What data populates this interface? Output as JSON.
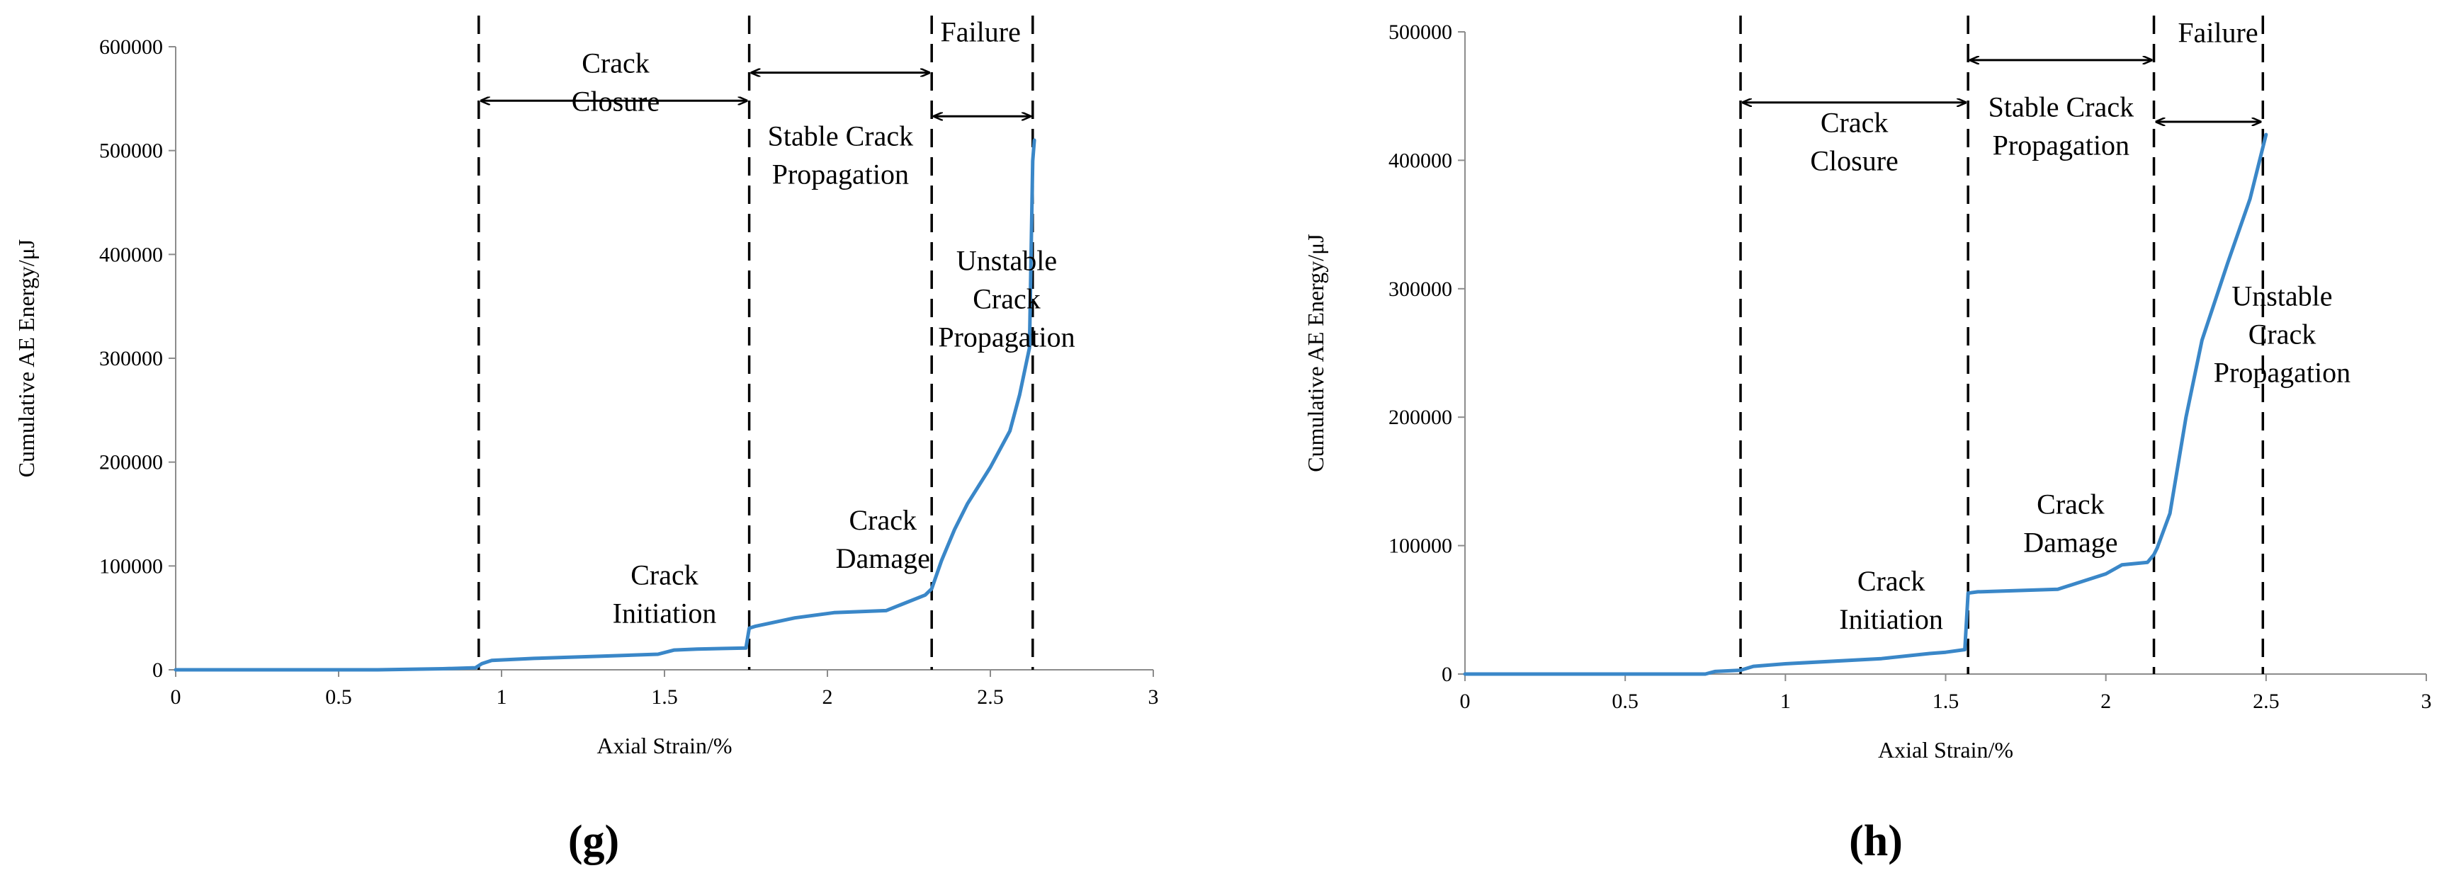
{
  "chart_data": [
    {
      "type": "line",
      "panel_label_parts": [
        "(",
        "g",
        ")"
      ],
      "xlabel": "Axial Strain/%",
      "ylabel": "Cumulative AE Energy/μJ",
      "xlim": [
        0,
        3
      ],
      "ylim": [
        0,
        600000
      ],
      "x_ticks": [
        0,
        0.5,
        1,
        1.5,
        2,
        2.5,
        3
      ],
      "x_tick_labels": [
        "0",
        "0.5",
        "1",
        "1.5",
        "2",
        "2.5",
        "3"
      ],
      "y_ticks": [
        0,
        100000,
        200000,
        300000,
        400000,
        500000,
        600000
      ],
      "y_tick_labels": [
        "0",
        "100000",
        "200000",
        "300000",
        "400000",
        "500000",
        "600000"
      ],
      "grid": false,
      "legend": "none",
      "line_color": "#3a87c8",
      "series": [
        {
          "x": [
            0,
            0.3,
            0.62,
            0.82,
            0.92,
            0.94,
            0.97,
            1.1,
            1.3,
            1.48,
            1.53,
            1.6,
            1.75,
            1.76,
            1.78,
            1.9,
            2.02,
            2.18,
            2.3,
            2.32,
            2.35,
            2.39,
            2.43,
            2.5,
            2.56,
            2.59,
            2.62,
            2.63,
            2.635
          ],
          "y": [
            0,
            0,
            0,
            1000,
            2000,
            6000,
            9000,
            11000,
            13000,
            15000,
            19000,
            20000,
            21000,
            40000,
            42000,
            50000,
            55000,
            57000,
            72000,
            78000,
            105000,
            135000,
            160000,
            195000,
            230000,
            265000,
            310000,
            490000,
            510000
          ]
        }
      ],
      "vlines": [
        0.93,
        1.76,
        2.32,
        2.63
      ],
      "annotations": [
        {
          "lines": [
            "Crack",
            "Closure"
          ],
          "x": 1.35,
          "y": 575000
        },
        {
          "lines": [
            "Stable Crack",
            "Propagation"
          ],
          "x": 2.04,
          "y": 505000
        },
        {
          "lines": [
            "Failure"
          ],
          "x": 2.47,
          "y": 605000
        },
        {
          "lines": [
            "Unstable",
            "Crack",
            "Propagation"
          ],
          "x": 2.55,
          "y": 385000
        },
        {
          "lines": [
            "Crack",
            "Initiation"
          ],
          "x": 1.5,
          "y": 82000
        },
        {
          "lines": [
            "Crack",
            "Damage"
          ],
          "x": 2.17,
          "y": 135000
        }
      ],
      "arrows": [
        {
          "x1": 0.93,
          "x2": 1.76,
          "y": 548000
        },
        {
          "x1": 1.76,
          "x2": 2.32,
          "y": 575000
        },
        {
          "x1": 2.32,
          "x2": 2.63,
          "y": 533000
        }
      ]
    },
    {
      "type": "line",
      "panel_label_parts": [
        "(",
        "h",
        ")"
      ],
      "xlabel": "Axial Strain/%",
      "ylabel": "Cumulative AE Energy/μJ",
      "xlim": [
        0,
        3
      ],
      "ylim": [
        0,
        500000
      ],
      "x_ticks": [
        0,
        0.5,
        1,
        1.5,
        2,
        2.5,
        3
      ],
      "x_tick_labels": [
        "0",
        "0.5",
        "1",
        "1.5",
        "2",
        "2.5",
        "3"
      ],
      "y_ticks": [
        0,
        100000,
        200000,
        300000,
        400000,
        500000
      ],
      "y_tick_labels": [
        "0",
        "100000",
        "200000",
        "300000",
        "400000",
        "500000"
      ],
      "grid": false,
      "legend": "none",
      "line_color": "#3a87c8",
      "series": [
        {
          "x": [
            0,
            0.4,
            0.75,
            0.78,
            0.86,
            0.9,
            1.0,
            1.3,
            1.45,
            1.5,
            1.56,
            1.57,
            1.6,
            1.85,
            2.0,
            2.05,
            2.13,
            2.15,
            2.16,
            2.2,
            2.25,
            2.3,
            2.38,
            2.45,
            2.5
          ],
          "y": [
            0,
            0,
            0,
            2000,
            3000,
            6000,
            8000,
            12000,
            16000,
            17000,
            19000,
            63000,
            64000,
            66000,
            78000,
            85000,
            87000,
            93000,
            98000,
            125000,
            200000,
            260000,
            320000,
            370000,
            420000
          ]
        }
      ],
      "vlines": [
        0.86,
        1.57,
        2.15,
        2.49
      ],
      "annotations": [
        {
          "lines": [
            "Crack",
            "Closure"
          ],
          "x": 1.215,
          "y": 422000
        },
        {
          "lines": [
            "Stable Crack",
            "Propagation"
          ],
          "x": 1.86,
          "y": 434000
        },
        {
          "lines": [
            "Failure"
          ],
          "x": 2.35,
          "y": 492000
        },
        {
          "lines": [
            "Unstable",
            "Crack",
            "Propagation"
          ],
          "x": 2.55,
          "y": 287000
        },
        {
          "lines": [
            "Crack",
            "Initiation"
          ],
          "x": 1.33,
          "y": 65000
        },
        {
          "lines": [
            "Crack",
            "Damage"
          ],
          "x": 1.89,
          "y": 125000
        }
      ],
      "arrows": [
        {
          "x1": 0.86,
          "x2": 1.57,
          "y": 445000
        },
        {
          "x1": 1.57,
          "x2": 2.15,
          "y": 478000
        },
        {
          "x1": 2.15,
          "x2": 2.49,
          "y": 430000
        }
      ]
    }
  ]
}
